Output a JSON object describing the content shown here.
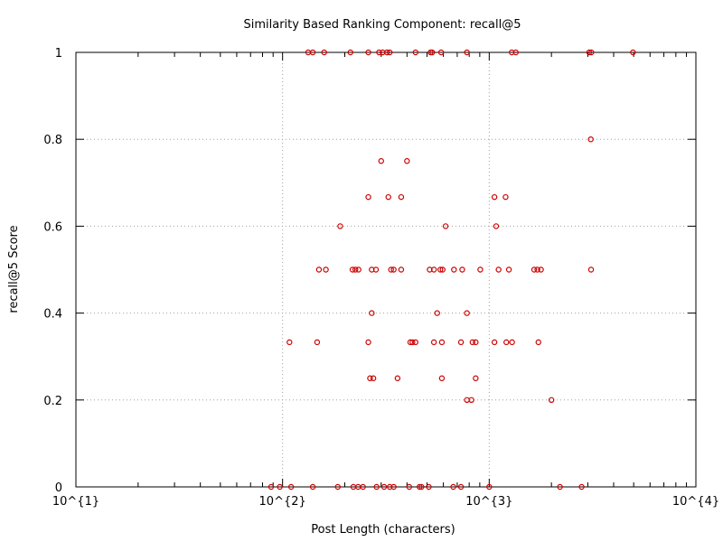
{
  "chart_data": {
    "type": "scatter",
    "title": "Similarity Based Ranking Component: recall@5",
    "xlabel": "Post Length (characters)",
    "ylabel": "recall@5 Score",
    "xscale": "log",
    "xlim": [
      10,
      10000
    ],
    "ylim": [
      0,
      1
    ],
    "xticks": [
      10,
      100,
      1000,
      10000
    ],
    "xtick_labels": [
      "10^{1}",
      "10^{2}",
      "10^{3}",
      "10^{4}"
    ],
    "yticks": [
      0,
      0.2,
      0.4,
      0.6,
      0.8,
      1
    ],
    "ytick_labels": [
      "0",
      "0.2",
      "0.4",
      "0.6",
      "0.8",
      "1"
    ],
    "grid": true,
    "marker_color": "#cc0000",
    "series": [
      {
        "x": [
          133,
          140,
          159,
          213,
          260,
          293,
          305,
          320,
          330,
          440,
          520,
          530,
          585,
          780,
          1285,
          1345,
          3045,
          3120,
          4960,
          3100,
          300,
          400,
          260,
          325,
          375,
          1060,
          1200,
          190,
          615,
          1080,
          150,
          162,
          218,
          225,
          233,
          270,
          283,
          335,
          345,
          375,
          515,
          540,
          580,
          595,
          675,
          740,
          905,
          1110,
          1245,
          1650,
          1710,
          1780,
          3110,
          270,
          560,
          780,
          108,
          147,
          260,
          415,
          425,
          440,
          540,
          590,
          730,
          830,
          860,
          1060,
          1210,
          1290,
          1730,
          265,
          275,
          360,
          590,
          860,
          780,
          820,
          2000,
          88,
          97,
          110,
          140,
          185,
          220,
          232,
          245,
          285,
          310,
          330,
          345,
          410,
          460,
          470,
          510,
          670,
          730,
          1000,
          2200,
          2800
        ],
        "y": [
          1,
          1,
          1,
          1,
          1,
          1,
          1,
          1,
          1,
          1,
          1,
          1,
          1,
          1,
          1,
          1,
          1,
          1,
          1,
          0.8,
          0.75,
          0.75,
          0.667,
          0.667,
          0.667,
          0.667,
          0.667,
          0.6,
          0.6,
          0.6,
          0.5,
          0.5,
          0.5,
          0.5,
          0.5,
          0.5,
          0.5,
          0.5,
          0.5,
          0.5,
          0.5,
          0.5,
          0.5,
          0.5,
          0.5,
          0.5,
          0.5,
          0.5,
          0.5,
          0.5,
          0.5,
          0.5,
          0.5,
          0.4,
          0.4,
          0.4,
          0.333,
          0.333,
          0.333,
          0.333,
          0.333,
          0.333,
          0.333,
          0.333,
          0.333,
          0.333,
          0.333,
          0.333,
          0.333,
          0.333,
          0.333,
          0.25,
          0.25,
          0.25,
          0.25,
          0.25,
          0.2,
          0.2,
          0.2,
          0,
          0,
          0,
          0,
          0,
          0,
          0,
          0,
          0,
          0,
          0,
          0,
          0,
          0,
          0,
          0,
          0,
          0,
          0,
          0,
          0
        ]
      }
    ]
  }
}
